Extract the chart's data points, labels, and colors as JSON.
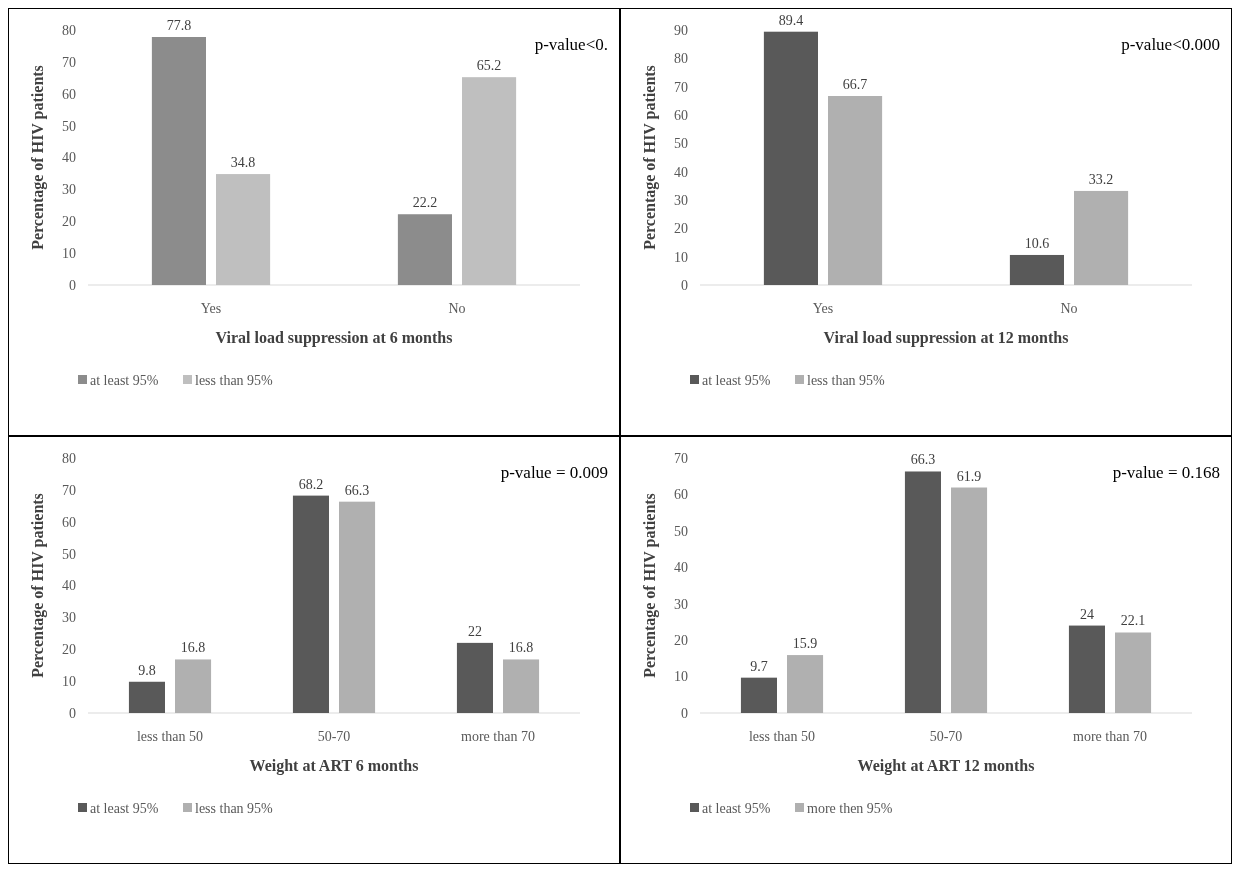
{
  "chart_data": [
    {
      "type": "bar",
      "xlabel": "Viral load suppression  at 6 months",
      "ylabel": "Percentage of HIV patients",
      "categories": [
        "Yes",
        "No"
      ],
      "series": [
        {
          "name": "at least 95%",
          "color": "#8c8c8c",
          "values": [
            77.8,
            22.2
          ]
        },
        {
          "name": "less than 95%",
          "color": "#bfbfbf",
          "values": [
            34.8,
            65.2
          ]
        }
      ],
      "ylim": [
        0,
        80
      ],
      "yticks": [
        0,
        10,
        20,
        30,
        40,
        50,
        60,
        70,
        80
      ],
      "data_labels": true,
      "legend": "bottom left",
      "annotations": [
        "p-value<0."
      ]
    },
    {
      "type": "bar",
      "xlabel": "Viral load suppression  at 12 months",
      "ylabel": "Percentage of HIV patients",
      "categories": [
        "Yes",
        "No"
      ],
      "series": [
        {
          "name": "at least 95%",
          "color": "#595959",
          "values": [
            89.4,
            10.6
          ]
        },
        {
          "name": "less than 95%",
          "color": "#b0b0b0",
          "values": [
            66.7,
            33.2
          ]
        }
      ],
      "ylim": [
        0,
        90
      ],
      "yticks": [
        0,
        10,
        20,
        30,
        40,
        50,
        60,
        70,
        80,
        90
      ],
      "data_labels": true,
      "legend": "bottom left",
      "annotations": [
        "p-value<0.000"
      ]
    },
    {
      "type": "bar",
      "xlabel": "Weight at ART 6 months",
      "ylabel": "Percentage of HIV patients",
      "categories": [
        "less than 50",
        "50-70",
        "more than 70"
      ],
      "series": [
        {
          "name": "at least 95%",
          "color": "#595959",
          "values": [
            9.8,
            68.2,
            22
          ]
        },
        {
          "name": "less than 95%",
          "color": "#b0b0b0",
          "values": [
            16.8,
            66.3,
            16.8
          ]
        }
      ],
      "ylim": [
        0,
        80
      ],
      "yticks": [
        0,
        10,
        20,
        30,
        40,
        50,
        60,
        70,
        80
      ],
      "data_labels": true,
      "legend": "bottom left",
      "annotations": [
        "p-value = 0.009"
      ]
    },
    {
      "type": "bar",
      "xlabel": "Weight at ART 12 months",
      "ylabel": "Percentage of HIV patients",
      "categories": [
        "less than 50",
        "50-70",
        "more than 70"
      ],
      "series": [
        {
          "name": "at least 95%",
          "color": "#595959",
          "values": [
            9.7,
            66.3,
            24
          ]
        },
        {
          "name": "more then 95%",
          "color": "#b0b0b0",
          "values": [
            15.9,
            61.9,
            22.1
          ]
        }
      ],
      "ylim": [
        0,
        70
      ],
      "yticks": [
        0,
        10,
        20,
        30,
        40,
        50,
        60,
        70
      ],
      "data_labels": true,
      "legend": "bottom left",
      "annotations": [
        "p-value = 0.168"
      ]
    }
  ]
}
